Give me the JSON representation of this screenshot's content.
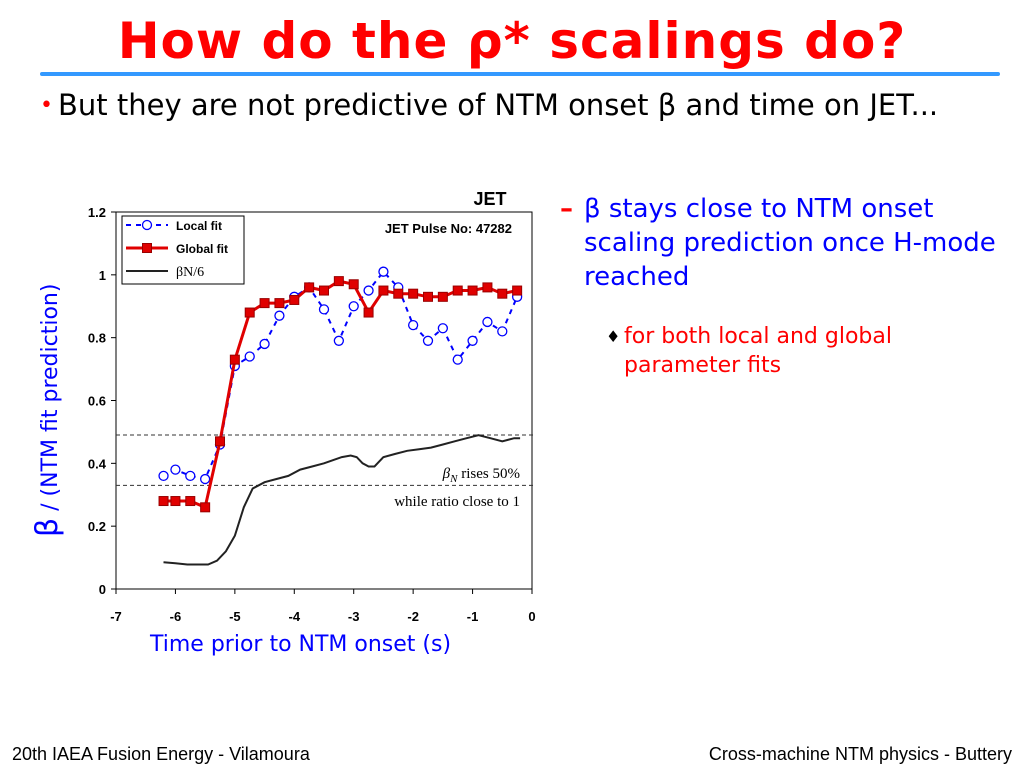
{
  "slide": {
    "title": "How do the ρ* scalings do?",
    "bullet_marker": "•",
    "bullet": "But they are not predictive of NTM onset β and time on JET...",
    "sub_marker": "–",
    "sub_bullet": "β stays close to NTM onset scaling prediction once H-mode reached",
    "subsub_marker": "♦",
    "subsub_bullet": "for both local and global parameter fits",
    "footer_left": "20th IAEA Fusion Energy - Vilamoura",
    "footer_right": "Cross-machine NTM physics - Buttery",
    "colors": {
      "title": "#ff0000",
      "rule": "#3399ff",
      "blue_text": "#0000ff",
      "red_text": "#ff0000"
    }
  },
  "chart_data": {
    "type": "line",
    "title": "JET",
    "annotation_pulse": "JET Pulse No: 47282",
    "annotation_rises_sym": "β",
    "annotation_rises_sub": "N",
    "annotation_rises": " rises 50%",
    "annotation_ratio": "while ratio close to 1",
    "ylabel_beta": "β",
    "ylabel": " / (NTM fit prediction)",
    "xlabel": "Time prior to NTM onset (s)",
    "xlim": [
      -7,
      0
    ],
    "ylim": [
      0,
      1.2
    ],
    "xticks": [
      "-7",
      "-6",
      "-5",
      "-4",
      "-3",
      "-2",
      "-1",
      "0"
    ],
    "yticks": [
      "0",
      "0.2",
      "0.4",
      "0.6",
      "0.8",
      "1",
      "1.2"
    ],
    "reference_lines": [
      0.49,
      0.33
    ],
    "legend_position": "top-left",
    "series": [
      {
        "name": "Local fit",
        "style": "dashed-open-circle",
        "color": "#0000ff",
        "x": [
          -6.2,
          -6.0,
          -5.75,
          -5.5,
          -5.25,
          -5.0,
          -4.75,
          -4.5,
          -4.25,
          -4.0,
          -3.75,
          -3.5,
          -3.25,
          -3.0,
          -2.75,
          -2.5,
          -2.25,
          -2.0,
          -1.75,
          -1.5,
          -1.25,
          -1.0,
          -0.75,
          -0.5,
          -0.25
        ],
        "y": [
          0.36,
          0.38,
          0.36,
          0.35,
          0.46,
          0.71,
          0.74,
          0.78,
          0.87,
          0.93,
          0.96,
          0.89,
          0.79,
          0.9,
          0.95,
          1.01,
          0.96,
          0.84,
          0.79,
          0.83,
          0.73,
          0.79,
          0.85,
          0.82,
          0.93
        ]
      },
      {
        "name": "Global fit",
        "style": "solid-filled-square",
        "color": "#e00000",
        "x": [
          -6.2,
          -6.0,
          -5.75,
          -5.5,
          -5.25,
          -5.0,
          -4.75,
          -4.5,
          -4.25,
          -4.0,
          -3.75,
          -3.5,
          -3.25,
          -3.0,
          -2.75,
          -2.5,
          -2.25,
          -2.0,
          -1.75,
          -1.5,
          -1.25,
          -1.0,
          -0.75,
          -0.5,
          -0.25
        ],
        "y": [
          0.28,
          0.28,
          0.28,
          0.26,
          0.47,
          0.73,
          0.88,
          0.91,
          0.91,
          0.92,
          0.96,
          0.95,
          0.98,
          0.97,
          0.88,
          0.95,
          0.94,
          0.94,
          0.93,
          0.93,
          0.95,
          0.95,
          0.96,
          0.94,
          0.95
        ]
      },
      {
        "name": "βN/6",
        "style": "solid-line",
        "color": "#222222",
        "x": [
          -6.2,
          -6.0,
          -5.8,
          -5.6,
          -5.45,
          -5.3,
          -5.15,
          -5.0,
          -4.85,
          -4.7,
          -4.5,
          -4.3,
          -4.1,
          -3.9,
          -3.7,
          -3.5,
          -3.35,
          -3.2,
          -3.05,
          -2.95,
          -2.85,
          -2.75,
          -2.65,
          -2.5,
          -2.3,
          -2.1,
          -1.9,
          -1.7,
          -1.5,
          -1.3,
          -1.1,
          -0.9,
          -0.7,
          -0.5,
          -0.3,
          -0.2
        ],
        "y": [
          0.085,
          0.082,
          0.078,
          0.078,
          0.078,
          0.09,
          0.12,
          0.17,
          0.26,
          0.32,
          0.34,
          0.35,
          0.36,
          0.38,
          0.39,
          0.4,
          0.41,
          0.42,
          0.425,
          0.42,
          0.4,
          0.39,
          0.39,
          0.42,
          0.43,
          0.44,
          0.445,
          0.45,
          0.46,
          0.47,
          0.48,
          0.49,
          0.48,
          0.47,
          0.48,
          0.48
        ]
      }
    ]
  }
}
